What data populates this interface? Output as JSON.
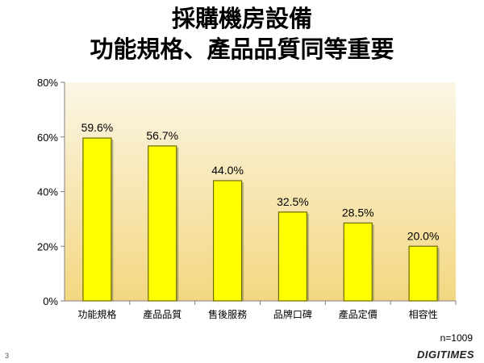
{
  "title_line1": "採購機房設備",
  "title_line2": "功能規格、產品品質同等重要",
  "sample_size": "n=1009",
  "page_number": "3",
  "brand": "DIGITIMES",
  "colors": {
    "bar_fill": "#ffff00",
    "bar_stroke": "#6b6b00",
    "plot_bg_top": "#fbf6e6",
    "plot_bg_bottom": "#f3d780"
  },
  "chart_data": {
    "type": "bar",
    "categories": [
      "功能規格",
      "產品品質",
      "售後服務",
      "品牌口碑",
      "產品定價",
      "相容性"
    ],
    "values": [
      59.6,
      56.7,
      44.0,
      32.5,
      28.5,
      20.0
    ],
    "data_labels": [
      "59.6%",
      "56.7%",
      "44.0%",
      "32.5%",
      "28.5%",
      "20.0%"
    ],
    "yticks": [
      "0%",
      "20%",
      "40%",
      "60%",
      "80%"
    ],
    "ylim": [
      0,
      80
    ],
    "grid": false,
    "legend": "none"
  }
}
